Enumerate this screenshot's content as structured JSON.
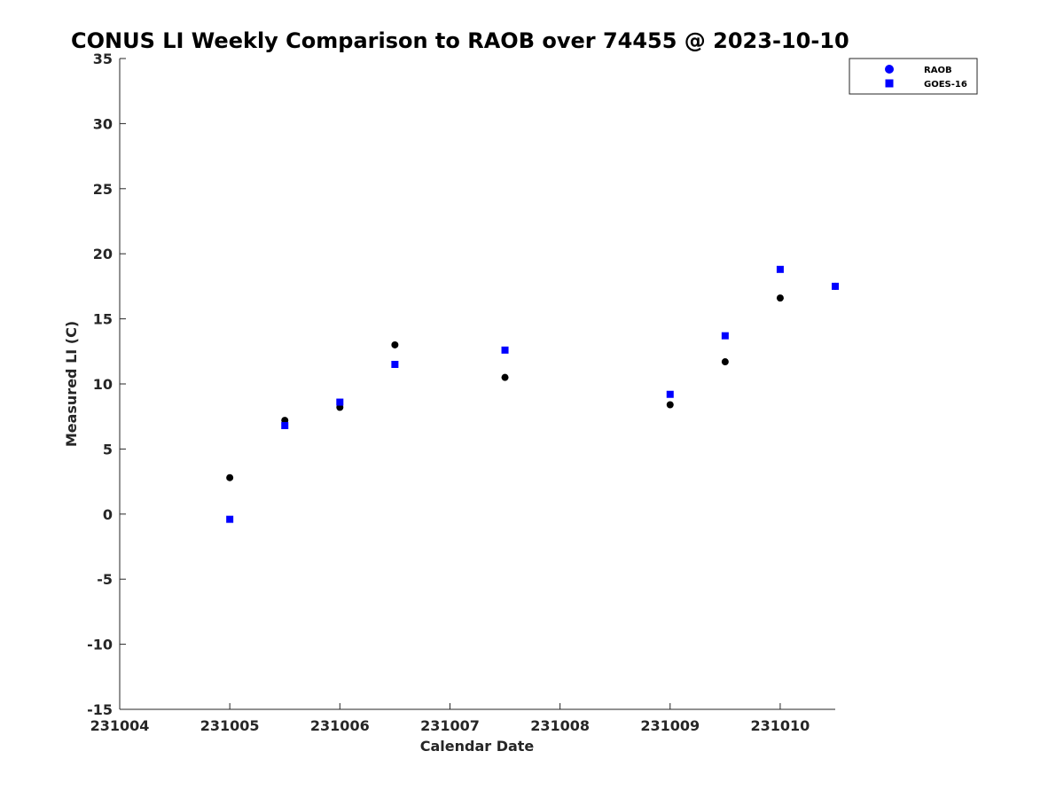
{
  "chart_data": {
    "type": "scatter",
    "title": "CONUS LI Weekly Comparison to RAOB over 74455 @ 2023-10-10",
    "xlabel": "Calendar Date",
    "ylabel": "Measured LI (C)",
    "xlim": [
      231004,
      231010.5
    ],
    "ylim": [
      -15,
      35
    ],
    "x_ticks": [
      231004,
      231005,
      231006,
      231007,
      231008,
      231009,
      231010
    ],
    "x_tick_labels": [
      "231004",
      "231005",
      "231006",
      "231007",
      "231008",
      "231009",
      "231010"
    ],
    "y_ticks": [
      -15,
      -10,
      -5,
      0,
      5,
      10,
      15,
      20,
      25,
      30,
      35
    ],
    "y_tick_labels": [
      "-15",
      "-10",
      "-5",
      "0",
      "5",
      "10",
      "15",
      "20",
      "25",
      "30",
      "35"
    ],
    "grid": false,
    "legend_position": "top-right",
    "series": [
      {
        "name": "RAOB",
        "marker": "circle",
        "color": "#000000",
        "legend_color": "#0000ff",
        "x": [
          231005,
          231005.5,
          231006,
          231006.5,
          231007.5,
          231009,
          231009.5,
          231010,
          231010.5
        ],
        "y": [
          2.8,
          7.2,
          8.2,
          13.0,
          10.5,
          8.4,
          11.7,
          16.6,
          17.5
        ]
      },
      {
        "name": "GOES-16",
        "marker": "square",
        "color": "#0000ff",
        "legend_color": "#0000ff",
        "x": [
          231005,
          231005.5,
          231006,
          231006.5,
          231007.5,
          231009,
          231009.5,
          231010,
          231010.5
        ],
        "y": [
          -0.4,
          6.8,
          8.6,
          11.5,
          12.6,
          9.2,
          13.7,
          18.8,
          17.5
        ]
      }
    ]
  }
}
